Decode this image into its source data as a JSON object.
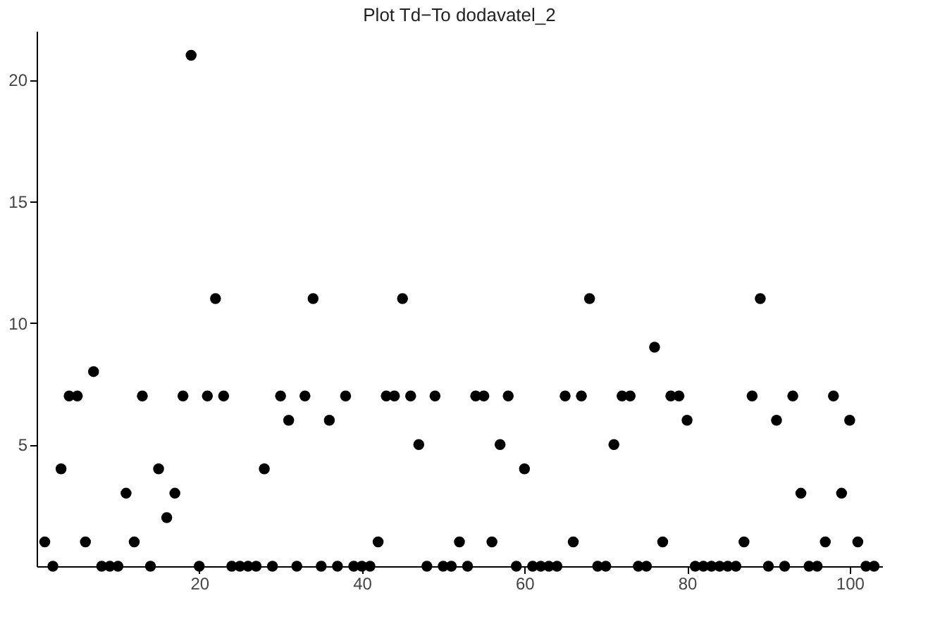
{
  "chart_data": {
    "type": "scatter",
    "title": "Plot Td−To dodavatel_2",
    "x": [
      1,
      2,
      3,
      4,
      5,
      6,
      7,
      8,
      9,
      10,
      11,
      12,
      13,
      14,
      15,
      16,
      17,
      18,
      19,
      20,
      21,
      22,
      23,
      24,
      25,
      26,
      27,
      28,
      29,
      30,
      31,
      32,
      33,
      34,
      35,
      36,
      37,
      38,
      39,
      40,
      41,
      42,
      43,
      44,
      45,
      46,
      47,
      48,
      49,
      50,
      51,
      52,
      53,
      54,
      55,
      56,
      57,
      58,
      59,
      60,
      61,
      62,
      63,
      64,
      65,
      66,
      67,
      68,
      69,
      70,
      71,
      72,
      73,
      74,
      75,
      76,
      77,
      78,
      79,
      80,
      81,
      82,
      83,
      84,
      85,
      86,
      87,
      88,
      89,
      90,
      91,
      92,
      93,
      94,
      95,
      96,
      97,
      98,
      99,
      100,
      101,
      102,
      103
    ],
    "series": [
      {
        "color": "#000000",
        "values": [
          1,
          0,
          4,
          7,
          7,
          1,
          8,
          0,
          0,
          0,
          3,
          1,
          7,
          0,
          4,
          2,
          3,
          7,
          21,
          0,
          7,
          11,
          7,
          0,
          0,
          0,
          0,
          4,
          0,
          7,
          6,
          0,
          7,
          11,
          0,
          6,
          0,
          7,
          0,
          0,
          0,
          1,
          7,
          7,
          11,
          7,
          5,
          0,
          7,
          0,
          0,
          1,
          0,
          7,
          7,
          1,
          5,
          7,
          0,
          4,
          0,
          0,
          0,
          0,
          7,
          1,
          7,
          11,
          0,
          0,
          5,
          7,
          7,
          0,
          0,
          9,
          1,
          7,
          7,
          6,
          0,
          0,
          0,
          0,
          0,
          0,
          1,
          7,
          11,
          0,
          6,
          0,
          7,
          3,
          0,
          0,
          1,
          7,
          3,
          6,
          1,
          0,
          0
        ]
      }
    ],
    "xlim": [
      0,
      104
    ],
    "ylim": [
      0,
      22
    ],
    "xticks": [
      20,
      40,
      60,
      80,
      100
    ],
    "yticks": [
      5,
      10,
      15,
      20
    ],
    "marker": "circle",
    "grid": false,
    "legend": false
  }
}
